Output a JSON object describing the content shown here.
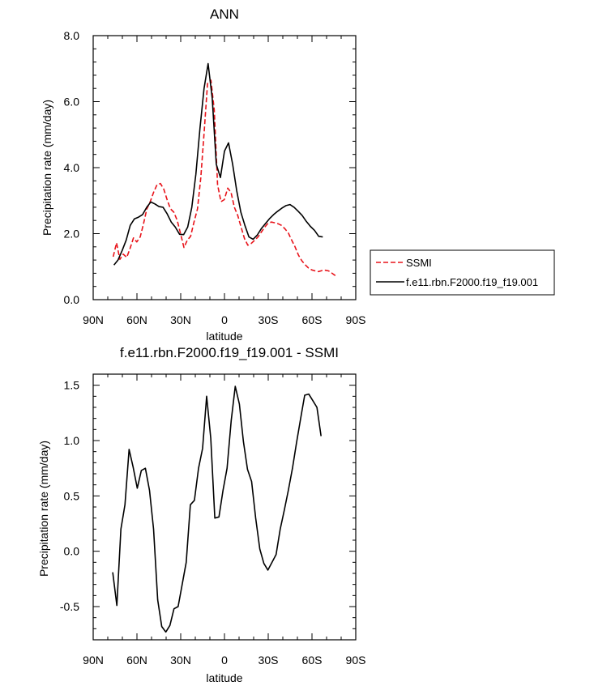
{
  "chart_data": [
    {
      "type": "line",
      "title": "ANN",
      "xlabel": "latitude",
      "ylabel": "Precipitation rate (mm/day)",
      "xlim": [
        -90,
        90
      ],
      "ylim": [
        0,
        8
      ],
      "x_ticks": [
        -90,
        -60,
        -30,
        0,
        30,
        60,
        90
      ],
      "x_tick_labels": [
        "90N",
        "60N",
        "30N",
        "0",
        "30S",
        "60S",
        "90S"
      ],
      "y_ticks": [
        0,
        2,
        4,
        6,
        8
      ],
      "y_tick_labels": [
        "0.0",
        "2.0",
        "4.0",
        "6.0",
        "8.0"
      ],
      "grid": false,
      "legend_position": "right",
      "series": [
        {
          "name": "SSMI",
          "color": "#e8131a",
          "dash": "dashed",
          "x": [
            -76.3,
            -74,
            -71.7,
            -69.4,
            -67,
            -64.7,
            -62.4,
            -60.1,
            -57.8,
            -55.5,
            -53.2,
            -50.9,
            -48.6,
            -46.3,
            -43.9,
            -41.6,
            -39.3,
            -37,
            -34.7,
            -32.4,
            -30.1,
            -27.8,
            -25.5,
            -23.2,
            -20.9,
            -18.5,
            -16.2,
            -13.9,
            -11.6,
            -9.3,
            -7,
            -4.7,
            -2.4,
            -0.1,
            2.2,
            4.5,
            6.8,
            9.1,
            11.4,
            13.7,
            16,
            18.3,
            20.7,
            23,
            25.3,
            27.6,
            29.9,
            32.2,
            34.5,
            36.8,
            39.1,
            41.4,
            43.8,
            46.1,
            48.4,
            50.7,
            53,
            55.3,
            57.6,
            59.9,
            62.2,
            64.5,
            66.8,
            69.1,
            71.4,
            73.7,
            76
          ],
          "y": [
            1.3,
            1.72,
            1.22,
            1.38,
            1.28,
            1.55,
            1.87,
            1.75,
            1.9,
            2.3,
            2.75,
            2.97,
            3.25,
            3.48,
            3.52,
            3.35,
            3.02,
            2.75,
            2.65,
            2.4,
            2.0,
            1.58,
            1.8,
            1.92,
            2.35,
            2.75,
            3.7,
            5.1,
            6.55,
            6.65,
            5.75,
            3.48,
            2.97,
            3.03,
            3.38,
            3.25,
            2.8,
            2.55,
            2.2,
            1.85,
            1.65,
            1.7,
            1.8,
            1.9,
            2.05,
            2.2,
            2.32,
            2.35,
            2.33,
            2.3,
            2.25,
            2.15,
            2.02,
            1.8,
            1.6,
            1.35,
            1.18,
            1.06,
            0.96,
            0.9,
            0.87,
            0.85,
            0.88,
            0.89,
            0.87,
            0.8,
            0.73
          ]
        },
        {
          "name": "f.e11.rbn.F2000.f19_f19.001",
          "color": "#000000",
          "dash": "solid",
          "x": [
            -75.8,
            -73,
            -70.2,
            -67.4,
            -64.6,
            -61.7,
            -58.9,
            -56.1,
            -53.3,
            -50.5,
            -47.7,
            -44.9,
            -42.1,
            -39.3,
            -36.5,
            -33.7,
            -30.8,
            -28,
            -25.2,
            -22.4,
            -19.6,
            -16.8,
            -14,
            -11.2,
            -8.4,
            -5.6,
            -2.8,
            0,
            2.8,
            5.6,
            8.4,
            11.2,
            14,
            16.8,
            19.6,
            22.4,
            25.2,
            28,
            30.8,
            33.7,
            36.5,
            39.3,
            42.1,
            44.9,
            47.7,
            50.5,
            53.3,
            56.1,
            58.9,
            61.7,
            64.6,
            67.4
          ],
          "y": [
            1.05,
            1.2,
            1.48,
            1.8,
            2.25,
            2.45,
            2.5,
            2.58,
            2.8,
            2.96,
            2.9,
            2.82,
            2.8,
            2.6,
            2.35,
            2.2,
            1.98,
            1.97,
            2.2,
            2.8,
            3.8,
            5.2,
            6.4,
            7.15,
            6.1,
            4.1,
            3.7,
            4.5,
            4.75,
            4.1,
            3.3,
            2.65,
            2.25,
            1.9,
            1.83,
            1.95,
            2.15,
            2.3,
            2.45,
            2.58,
            2.68,
            2.77,
            2.85,
            2.88,
            2.8,
            2.68,
            2.55,
            2.37,
            2.22,
            2.1,
            1.92,
            1.9
          ]
        }
      ]
    },
    {
      "type": "line",
      "title": "f.e11.rbn.F2000.f19_f19.001 - SSMI",
      "xlabel": "latitude",
      "ylabel": "Precipitation rate (mm/day)",
      "xlim": [
        -90,
        90
      ],
      "ylim": [
        -0.8,
        1.6
      ],
      "x_ticks": [
        -90,
        -60,
        -30,
        0,
        30,
        60,
        90
      ],
      "x_tick_labels": [
        "90N",
        "60N",
        "30N",
        "0",
        "30S",
        "60S",
        "90S"
      ],
      "y_ticks": [
        -0.5,
        0,
        0.5,
        1,
        1.5
      ],
      "y_tick_labels": [
        "-0.5",
        "0.0",
        "0.5",
        "1.0",
        "1.5"
      ],
      "grid": false,
      "series": [
        {
          "color": "#000000",
          "dash": "solid",
          "x": [
            -76.6,
            -73.8,
            -71,
            -68.2,
            -65.4,
            -62.6,
            -59.8,
            -57,
            -54.2,
            -51.4,
            -48.6,
            -45.8,
            -43,
            -40.2,
            -37.4,
            -34.6,
            -31.8,
            -29,
            -26.2,
            -23.4,
            -20.6,
            -17.8,
            -15,
            -12.2,
            -9.4,
            -6.6,
            -3.8,
            -1,
            1.8,
            4.6,
            7.4,
            10.2,
            13,
            15.8,
            18.6,
            21.4,
            24.2,
            27,
            29.8,
            32.6,
            35.4,
            38.2,
            41,
            43.8,
            46.6,
            49.4,
            52.2,
            55,
            57.8,
            60.6,
            63.4,
            66.2
          ],
          "y": [
            -0.19,
            -0.49,
            0.2,
            0.42,
            0.92,
            0.76,
            0.57,
            0.73,
            0.75,
            0.55,
            0.2,
            -0.44,
            -0.68,
            -0.73,
            -0.67,
            -0.52,
            -0.5,
            -0.3,
            -0.1,
            0.42,
            0.46,
            0.75,
            0.93,
            1.4,
            1.02,
            0.3,
            0.31,
            0.55,
            0.75,
            1.18,
            1.49,
            1.33,
            0.99,
            0.74,
            0.63,
            0.3,
            0.02,
            -0.11,
            -0.17,
            -0.1,
            -0.03,
            0.2,
            0.37,
            0.55,
            0.75,
            0.98,
            1.2,
            1.41,
            1.42,
            1.36,
            1.3,
            1.04
          ]
        }
      ]
    }
  ]
}
